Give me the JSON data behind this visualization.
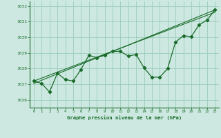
{
  "title": "Graphe pression niveau de la mer (hPa)",
  "background_color": "#cce8e0",
  "grid_color": "#99ccbb",
  "line_color": "#1a6b2a",
  "xlim": [
    -0.5,
    23.5
  ],
  "ylim": [
    1025.5,
    1032.3
  ],
  "yticks": [
    1026,
    1027,
    1028,
    1029,
    1030,
    1031,
    1032
  ],
  "xticks": [
    0,
    1,
    2,
    3,
    4,
    5,
    6,
    7,
    8,
    9,
    10,
    11,
    12,
    13,
    14,
    15,
    16,
    17,
    18,
    19,
    20,
    21,
    22,
    23
  ],
  "series1_x": [
    0,
    1,
    2,
    3,
    4,
    5,
    6,
    7,
    8,
    9,
    10,
    11,
    12,
    13,
    14,
    15,
    16,
    17,
    18,
    19,
    20,
    21,
    22,
    23
  ],
  "series1_y": [
    1027.2,
    1027.05,
    1026.5,
    1027.7,
    1027.3,
    1027.2,
    1027.95,
    1028.85,
    1028.7,
    1028.85,
    1029.1,
    1029.1,
    1028.8,
    1028.9,
    1028.05,
    1027.45,
    1027.45,
    1028.0,
    1029.7,
    1030.1,
    1030.05,
    1030.8,
    1031.1,
    1031.75
  ],
  "series2_x": [
    0,
    23
  ],
  "series2_y": [
    1027.05,
    1031.75
  ],
  "series3_x": [
    0,
    23
  ],
  "series3_y": [
    1027.2,
    1031.6
  ]
}
